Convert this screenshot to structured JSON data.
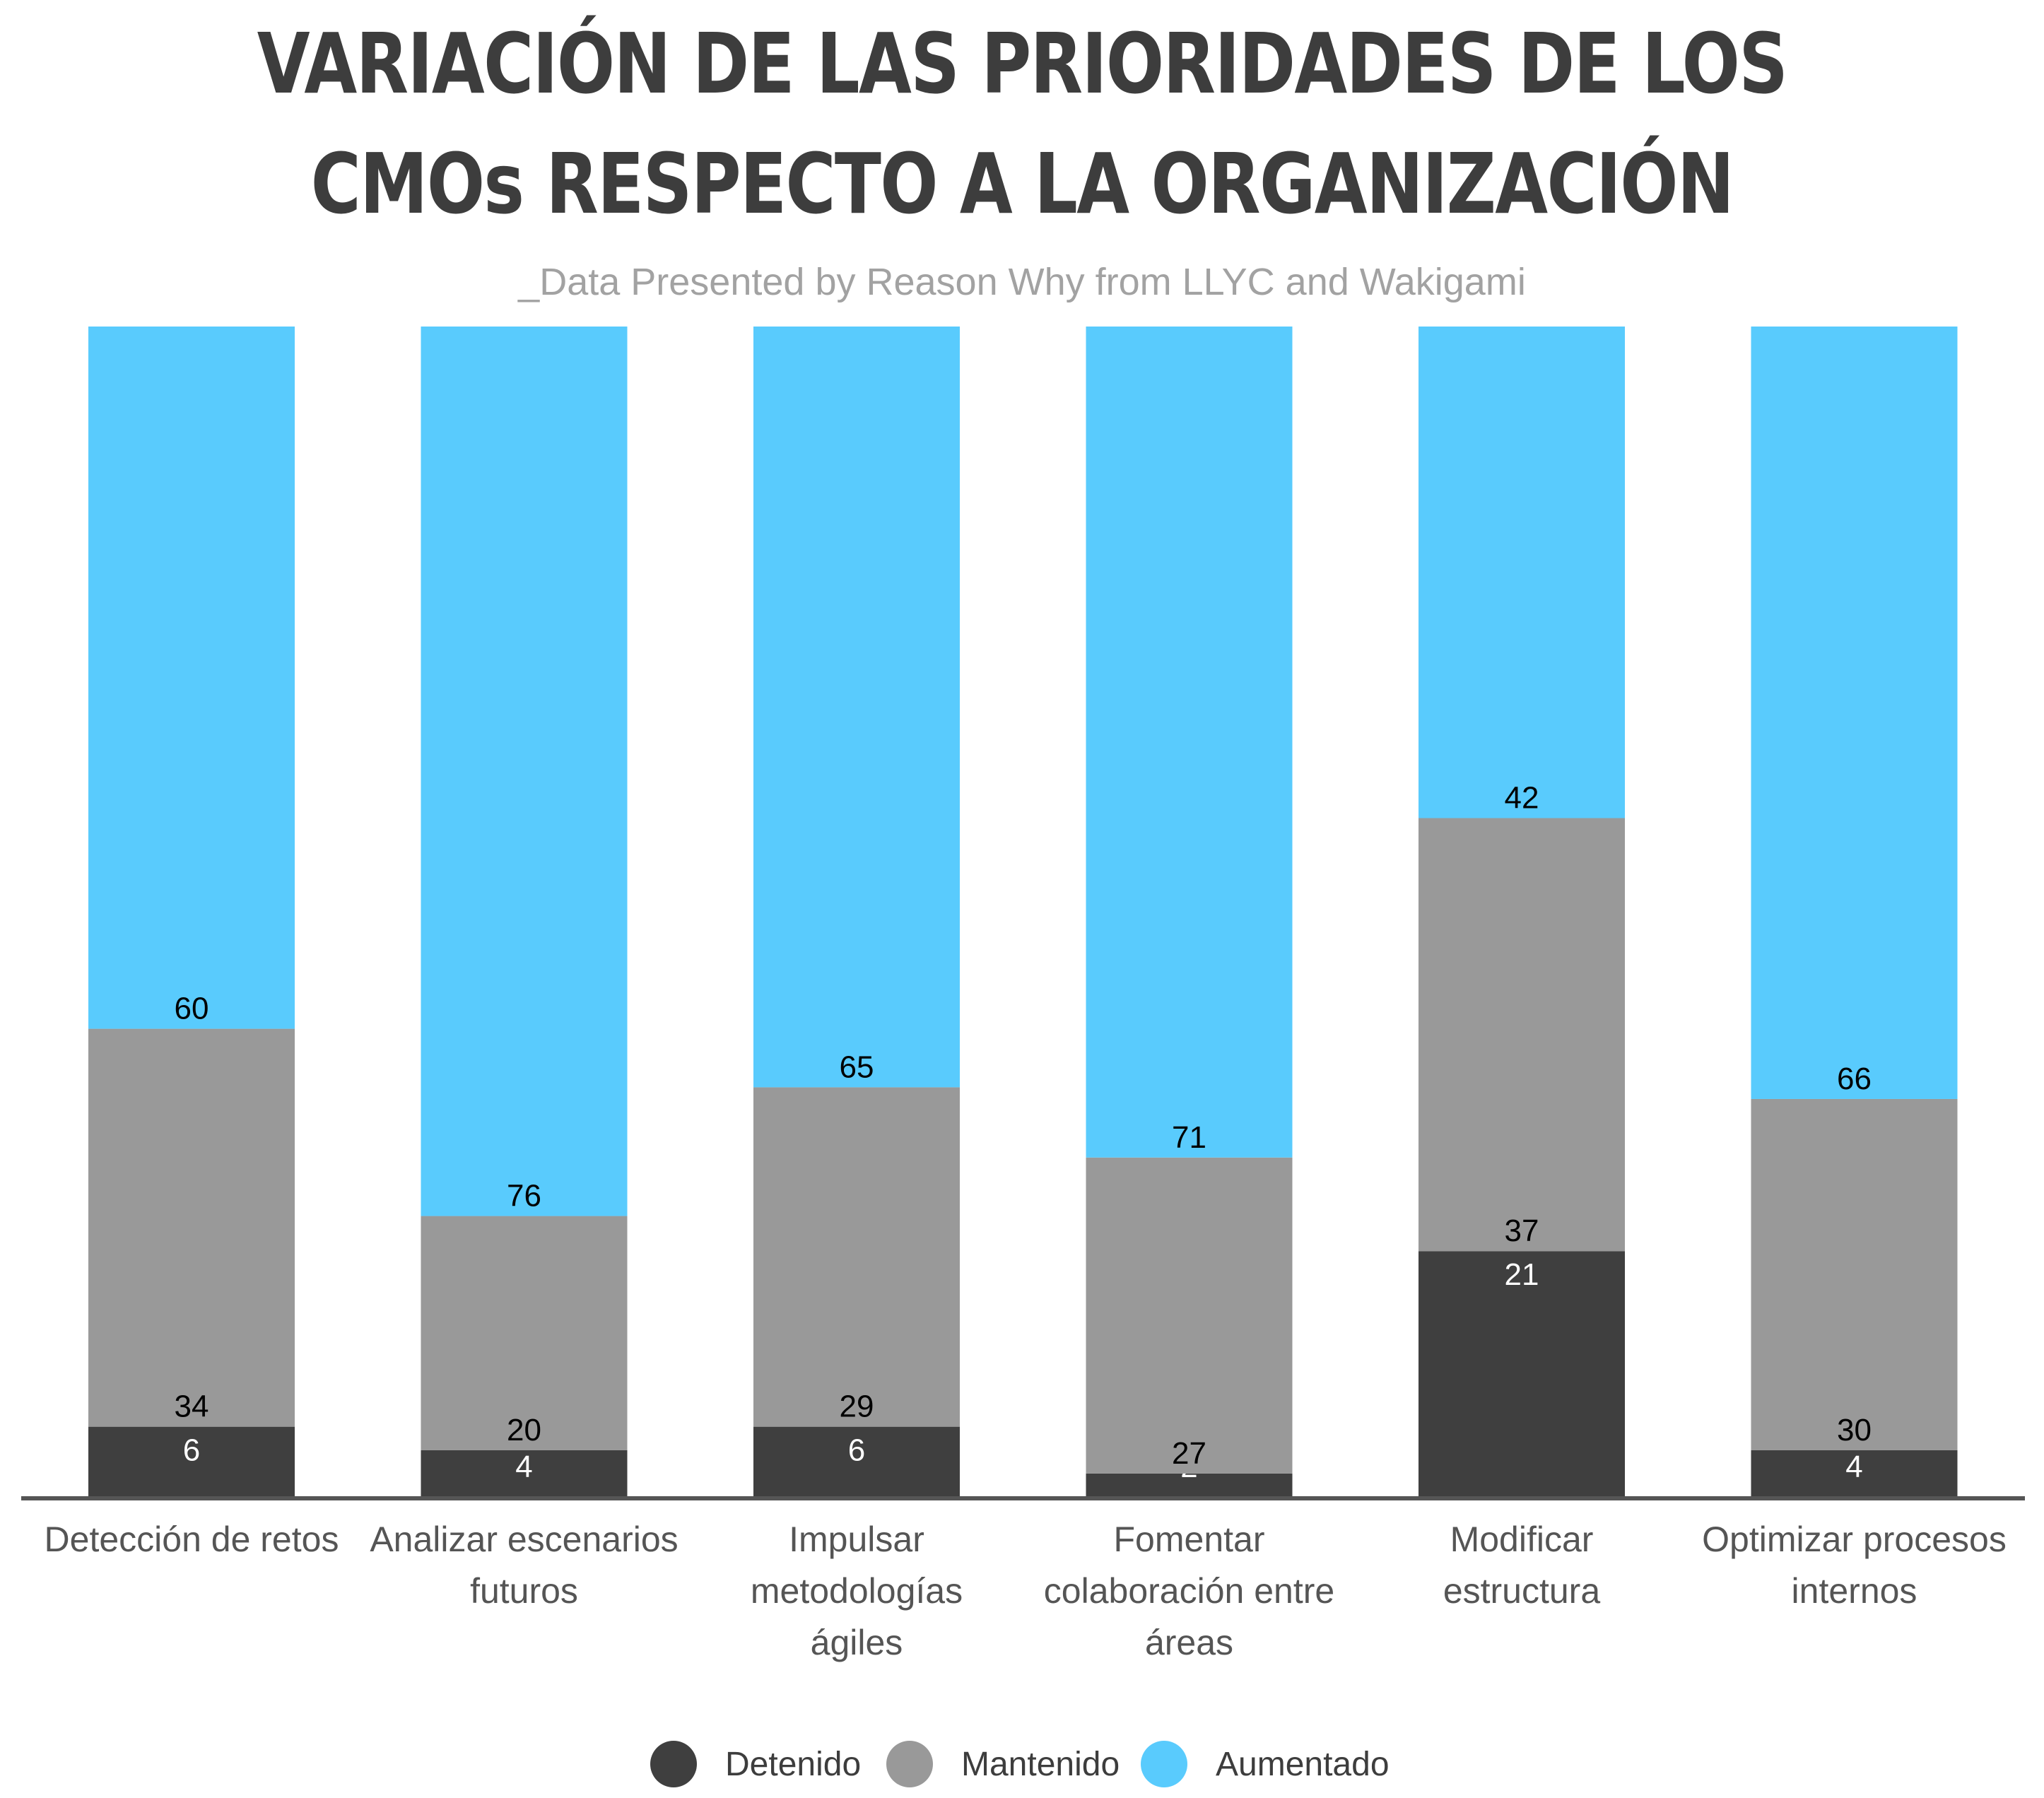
{
  "title_lines": [
    "VARIACIÓN DE LAS PRIORIDADES DE LOS",
    "CMOs RESPECTO A LA ORGANIZACIÓN"
  ],
  "subtitle": "_Data Presented by Reason Why from LLYC and Wakigami",
  "legend": [
    {
      "label": "Detenido",
      "color": "#3f3f3f"
    },
    {
      "label": "Mantenido",
      "color": "#999999"
    },
    {
      "label": "Aumentado",
      "color": "#59cbfd"
    }
  ],
  "chart_data": {
    "type": "bar",
    "stacked": true,
    "categories": [
      [
        "Detección de retos"
      ],
      [
        "Analizar escenarios",
        "futuros"
      ],
      [
        "Impulsar",
        "metodologías",
        "ágiles"
      ],
      [
        "Fomentar",
        "colaboración entre",
        "áreas"
      ],
      [
        "Modificar",
        "estructura"
      ],
      [
        "Optimizar procesos",
        "internos"
      ]
    ],
    "series": [
      {
        "name": "Detenido",
        "color": "#3f3f3f",
        "values": [
          6,
          4,
          6,
          2,
          21,
          4
        ]
      },
      {
        "name": "Mantenido",
        "color": "#999999",
        "values": [
          34,
          20,
          29,
          27,
          37,
          30
        ]
      },
      {
        "name": "Aumentado",
        "color": "#59cbfd",
        "values": [
          60,
          76,
          65,
          71,
          42,
          66
        ]
      }
    ],
    "ylim": [
      0,
      100
    ],
    "grid": false,
    "legend_position": "bottom"
  }
}
